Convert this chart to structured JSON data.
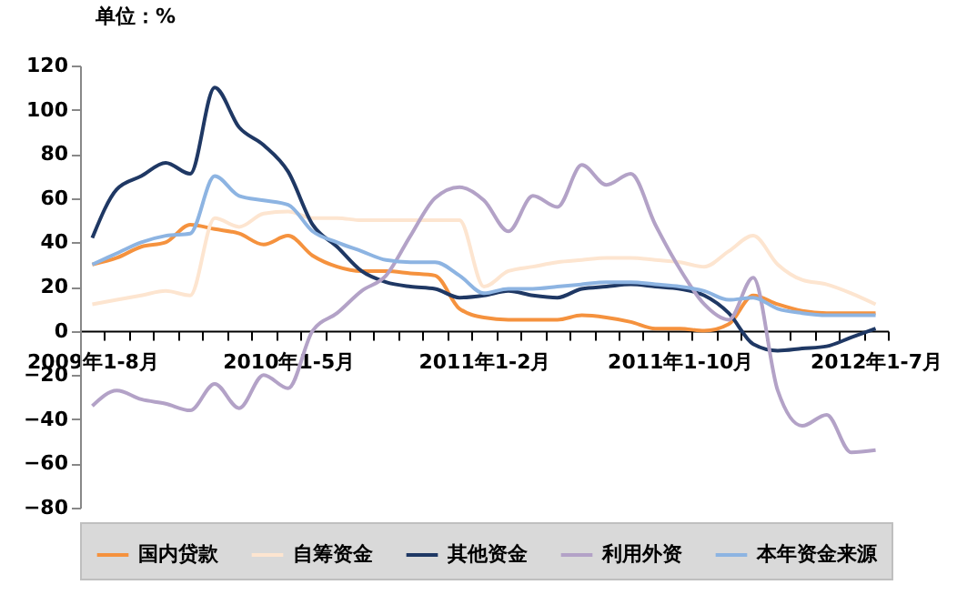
{
  "chart_data": {
    "type": "line",
    "ylabel": "单位：%",
    "categories": [
      "2009年1-8月",
      null,
      null,
      null,
      null,
      null,
      null,
      null,
      "2010年1-5月",
      null,
      null,
      null,
      null,
      null,
      null,
      null,
      "2011年1-2月",
      null,
      null,
      null,
      null,
      null,
      null,
      null,
      "2011年1-10月",
      null,
      null,
      null,
      null,
      null,
      null,
      null,
      "2012年1-7月"
    ],
    "series": [
      {
        "name": "国内贷款",
        "color": "#f5923e",
        "values": [
          30,
          33,
          38,
          40,
          48,
          46,
          44,
          39,
          43,
          34,
          29,
          27,
          27,
          26,
          25,
          10,
          6,
          5,
          5,
          5,
          7,
          6,
          4,
          1,
          1,
          0,
          3,
          16,
          12,
          9,
          8,
          8,
          8
        ]
      },
      {
        "name": "自筹资金",
        "color": "#fde5d0",
        "values": [
          12,
          14,
          16,
          18,
          16,
          51,
          47,
          53,
          54,
          51,
          51,
          50,
          50,
          50,
          50,
          50,
          20,
          27,
          29,
          31,
          32,
          33,
          33,
          32,
          31,
          29,
          36,
          43,
          30,
          23,
          21,
          17,
          12
        ]
      },
      {
        "name": "其他资金",
        "color": "#1f3864",
        "values": [
          42,
          64,
          70,
          76,
          71,
          110,
          92,
          84,
          72,
          48,
          38,
          27,
          22,
          20,
          19,
          15,
          16,
          18,
          16,
          15,
          19,
          20,
          21,
          20,
          19,
          16,
          8,
          -6,
          -9,
          -8,
          -7,
          -3,
          1
        ]
      },
      {
        "name": "利用外资",
        "color": "#b3a2c7",
        "values": [
          -34,
          -27,
          -31,
          -33,
          -36,
          -24,
          -35,
          -20,
          -26,
          0,
          8,
          18,
          25,
          43,
          60,
          65,
          59,
          45,
          61,
          56,
          75,
          66,
          71,
          48,
          28,
          12,
          5,
          24,
          -27,
          -43,
          -38,
          -55,
          -54
        ]
      },
      {
        "name": "本年资金来源",
        "color": "#8db4e2",
        "values": [
          30,
          35,
          40,
          43,
          44,
          70,
          61,
          59,
          57,
          45,
          40,
          36,
          32,
          31,
          31,
          25,
          17,
          19,
          19,
          20,
          21,
          22,
          22,
          21,
          20,
          18,
          14,
          15,
          10,
          8,
          7,
          7,
          7
        ]
      }
    ],
    "ylim": [
      -80,
      120
    ],
    "yticks": [
      -80,
      -60,
      -40,
      -20,
      0,
      20,
      40,
      60,
      80,
      100,
      120
    ],
    "grid": false,
    "legend": "bottom",
    "marker": "none",
    "line_style": "solid"
  }
}
